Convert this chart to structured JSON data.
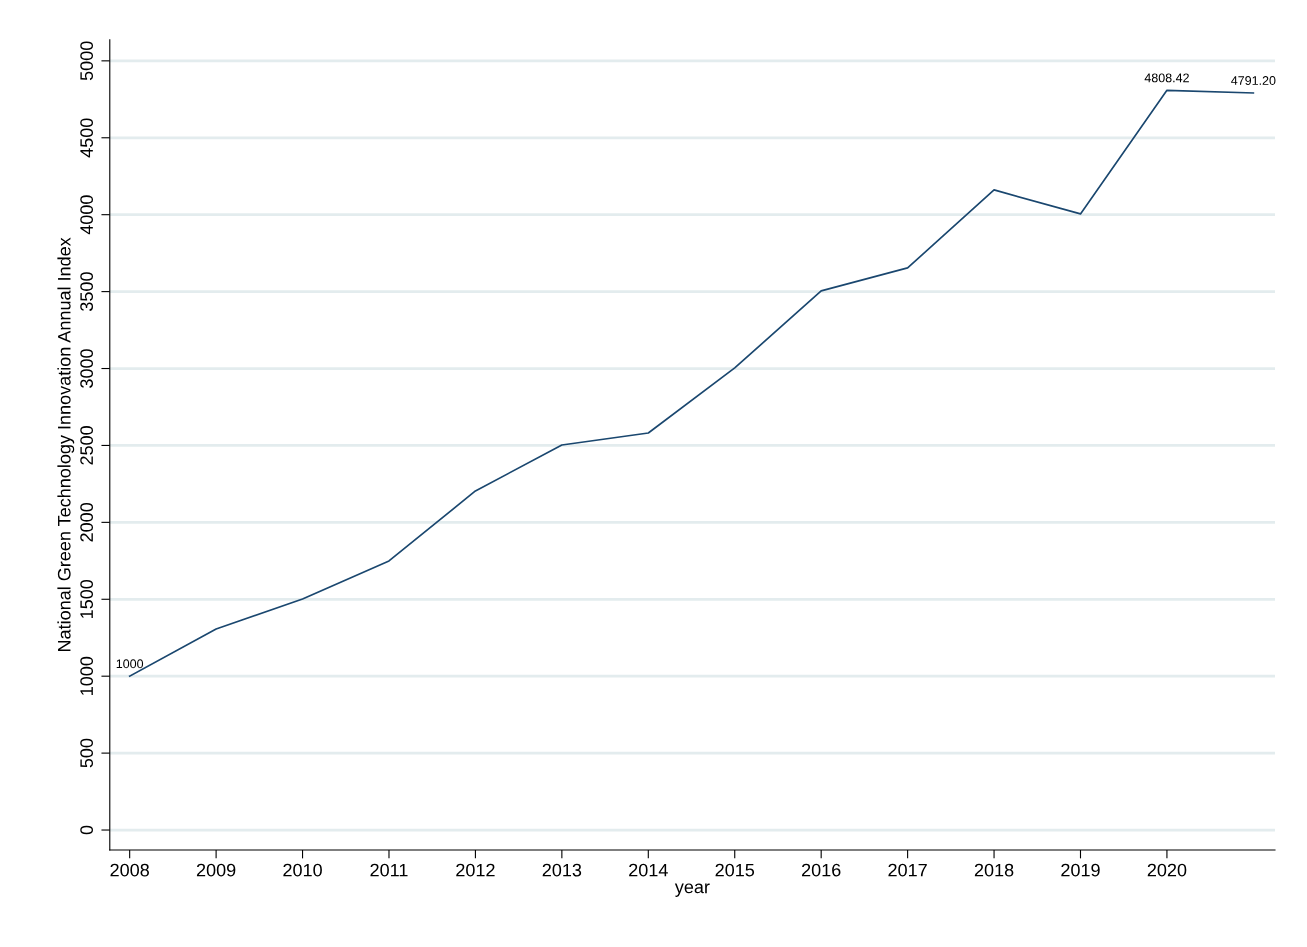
{
  "chart_data": {
    "type": "line",
    "xlabel": "year",
    "ylabel": "National Green Technology Innovation Annual Index",
    "x": [
      2008,
      2009,
      2010,
      2011,
      2012,
      2013,
      2014,
      2015,
      2016,
      2017,
      2018,
      2019,
      2020,
      2021
    ],
    "series": [
      {
        "color": "#1a476f",
        "values": [
          1000,
          1307,
          1502,
          1749,
          2204,
          2503,
          2581,
          3004,
          3505,
          3654,
          4161,
          4005,
          4808.42,
          4791.2
        ],
        "value_labels": [
          "1000",
          null,
          null,
          null,
          null,
          null,
          null,
          null,
          null,
          null,
          null,
          null,
          "4808.42",
          "4791.20"
        ]
      }
    ],
    "xlim": [
      2007.77,
      2021.25
    ],
    "xticks": [
      2008,
      2009,
      2010,
      2011,
      2012,
      2013,
      2014,
      2015,
      2016,
      2017,
      2018,
      2019,
      2020
    ],
    "ylim": [
      -130,
      5137
    ],
    "yticks": [
      0,
      500,
      1000,
      1500,
      2000,
      2500,
      3000,
      3500,
      4000,
      4500,
      5000
    ],
    "grid": "y",
    "marker": "none",
    "line_style": "solid"
  }
}
